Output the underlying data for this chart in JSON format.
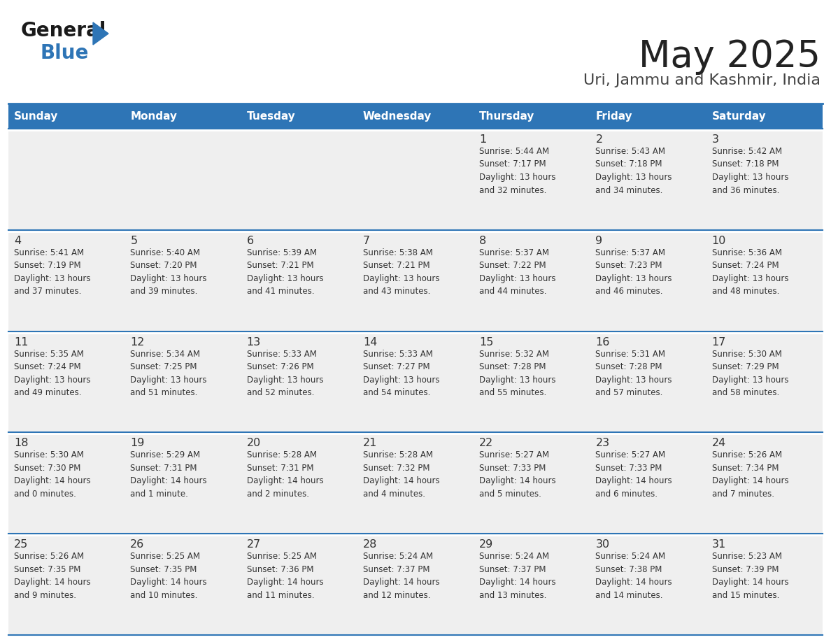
{
  "title": "May 2025",
  "subtitle": "Uri, Jammu and Kashmir, India",
  "days_of_week": [
    "Sunday",
    "Monday",
    "Tuesday",
    "Wednesday",
    "Thursday",
    "Friday",
    "Saturday"
  ],
  "header_bg": "#2E75B6",
  "header_text_color": "#FFFFFF",
  "cell_bg": "#EFEFEF",
  "cell_text_color": "#333333",
  "border_color": "#2E75B6",
  "row_sep_color": "#FFFFFF",
  "title_color": "#222222",
  "subtitle_color": "#444444",
  "logo_general_color": "#1a1a1a",
  "logo_blue_color": "#2E75B6",
  "weeks": [
    [
      {
        "day": null,
        "info": null
      },
      {
        "day": null,
        "info": null
      },
      {
        "day": null,
        "info": null
      },
      {
        "day": null,
        "info": null
      },
      {
        "day": 1,
        "info": "Sunrise: 5:44 AM\nSunset: 7:17 PM\nDaylight: 13 hours\nand 32 minutes."
      },
      {
        "day": 2,
        "info": "Sunrise: 5:43 AM\nSunset: 7:18 PM\nDaylight: 13 hours\nand 34 minutes."
      },
      {
        "day": 3,
        "info": "Sunrise: 5:42 AM\nSunset: 7:18 PM\nDaylight: 13 hours\nand 36 minutes."
      }
    ],
    [
      {
        "day": 4,
        "info": "Sunrise: 5:41 AM\nSunset: 7:19 PM\nDaylight: 13 hours\nand 37 minutes."
      },
      {
        "day": 5,
        "info": "Sunrise: 5:40 AM\nSunset: 7:20 PM\nDaylight: 13 hours\nand 39 minutes."
      },
      {
        "day": 6,
        "info": "Sunrise: 5:39 AM\nSunset: 7:21 PM\nDaylight: 13 hours\nand 41 minutes."
      },
      {
        "day": 7,
        "info": "Sunrise: 5:38 AM\nSunset: 7:21 PM\nDaylight: 13 hours\nand 43 minutes."
      },
      {
        "day": 8,
        "info": "Sunrise: 5:37 AM\nSunset: 7:22 PM\nDaylight: 13 hours\nand 44 minutes."
      },
      {
        "day": 9,
        "info": "Sunrise: 5:37 AM\nSunset: 7:23 PM\nDaylight: 13 hours\nand 46 minutes."
      },
      {
        "day": 10,
        "info": "Sunrise: 5:36 AM\nSunset: 7:24 PM\nDaylight: 13 hours\nand 48 minutes."
      }
    ],
    [
      {
        "day": 11,
        "info": "Sunrise: 5:35 AM\nSunset: 7:24 PM\nDaylight: 13 hours\nand 49 minutes."
      },
      {
        "day": 12,
        "info": "Sunrise: 5:34 AM\nSunset: 7:25 PM\nDaylight: 13 hours\nand 51 minutes."
      },
      {
        "day": 13,
        "info": "Sunrise: 5:33 AM\nSunset: 7:26 PM\nDaylight: 13 hours\nand 52 minutes."
      },
      {
        "day": 14,
        "info": "Sunrise: 5:33 AM\nSunset: 7:27 PM\nDaylight: 13 hours\nand 54 minutes."
      },
      {
        "day": 15,
        "info": "Sunrise: 5:32 AM\nSunset: 7:28 PM\nDaylight: 13 hours\nand 55 minutes."
      },
      {
        "day": 16,
        "info": "Sunrise: 5:31 AM\nSunset: 7:28 PM\nDaylight: 13 hours\nand 57 minutes."
      },
      {
        "day": 17,
        "info": "Sunrise: 5:30 AM\nSunset: 7:29 PM\nDaylight: 13 hours\nand 58 minutes."
      }
    ],
    [
      {
        "day": 18,
        "info": "Sunrise: 5:30 AM\nSunset: 7:30 PM\nDaylight: 14 hours\nand 0 minutes."
      },
      {
        "day": 19,
        "info": "Sunrise: 5:29 AM\nSunset: 7:31 PM\nDaylight: 14 hours\nand 1 minute."
      },
      {
        "day": 20,
        "info": "Sunrise: 5:28 AM\nSunset: 7:31 PM\nDaylight: 14 hours\nand 2 minutes."
      },
      {
        "day": 21,
        "info": "Sunrise: 5:28 AM\nSunset: 7:32 PM\nDaylight: 14 hours\nand 4 minutes."
      },
      {
        "day": 22,
        "info": "Sunrise: 5:27 AM\nSunset: 7:33 PM\nDaylight: 14 hours\nand 5 minutes."
      },
      {
        "day": 23,
        "info": "Sunrise: 5:27 AM\nSunset: 7:33 PM\nDaylight: 14 hours\nand 6 minutes."
      },
      {
        "day": 24,
        "info": "Sunrise: 5:26 AM\nSunset: 7:34 PM\nDaylight: 14 hours\nand 7 minutes."
      }
    ],
    [
      {
        "day": 25,
        "info": "Sunrise: 5:26 AM\nSunset: 7:35 PM\nDaylight: 14 hours\nand 9 minutes."
      },
      {
        "day": 26,
        "info": "Sunrise: 5:25 AM\nSunset: 7:35 PM\nDaylight: 14 hours\nand 10 minutes."
      },
      {
        "day": 27,
        "info": "Sunrise: 5:25 AM\nSunset: 7:36 PM\nDaylight: 14 hours\nand 11 minutes."
      },
      {
        "day": 28,
        "info": "Sunrise: 5:24 AM\nSunset: 7:37 PM\nDaylight: 14 hours\nand 12 minutes."
      },
      {
        "day": 29,
        "info": "Sunrise: 5:24 AM\nSunset: 7:37 PM\nDaylight: 14 hours\nand 13 minutes."
      },
      {
        "day": 30,
        "info": "Sunrise: 5:24 AM\nSunset: 7:38 PM\nDaylight: 14 hours\nand 14 minutes."
      },
      {
        "day": 31,
        "info": "Sunrise: 5:23 AM\nSunset: 7:39 PM\nDaylight: 14 hours\nand 15 minutes."
      }
    ]
  ]
}
